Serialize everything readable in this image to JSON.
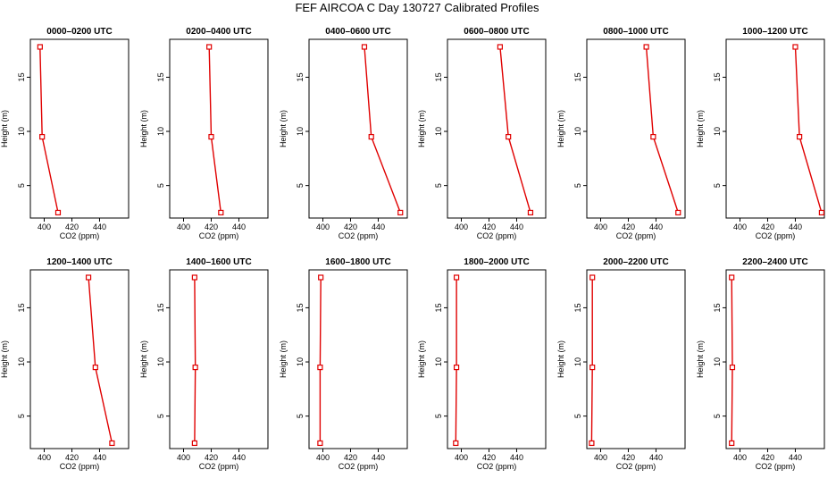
{
  "figure": {
    "title": "FEF AIRCOA C  Day 130727  Calibrated Profiles"
  },
  "chart_data": [
    {
      "type": "line",
      "title": "0000–0200 UTC",
      "xlabel": "CO2 (ppm)",
      "ylabel": "Height (m)",
      "x_ticks": [
        400,
        420,
        440
      ],
      "y_ticks": [
        5,
        10,
        15
      ],
      "xlim": [
        390,
        461
      ],
      "ylim": [
        2,
        18.5
      ],
      "grid": false,
      "series": [
        {
          "x": [
            410,
            398.5,
            397
          ],
          "y": [
            2.5,
            9.5,
            17.8
          ]
        }
      ]
    },
    {
      "type": "line",
      "title": "0200–0400 UTC",
      "xlabel": "CO2 (ppm)",
      "ylabel": "Height (m)",
      "x_ticks": [
        400,
        420,
        440
      ],
      "y_ticks": [
        5,
        10,
        15
      ],
      "xlim": [
        390,
        461
      ],
      "ylim": [
        2,
        18.5
      ],
      "grid": false,
      "series": [
        {
          "x": [
            427,
            420,
            418.5
          ],
          "y": [
            2.5,
            9.5,
            17.8
          ]
        }
      ]
    },
    {
      "type": "line",
      "title": "0400–0600 UTC",
      "xlabel": "CO2 (ppm)",
      "ylabel": "Height (m)",
      "x_ticks": [
        400,
        420,
        440
      ],
      "y_ticks": [
        5,
        10,
        15
      ],
      "xlim": [
        390,
        461
      ],
      "ylim": [
        2,
        18.5
      ],
      "grid": false,
      "series": [
        {
          "x": [
            456,
            435,
            430
          ],
          "y": [
            2.5,
            9.5,
            17.8
          ]
        }
      ]
    },
    {
      "type": "line",
      "title": "0600–0800 UTC",
      "xlabel": "CO2 (ppm)",
      "ylabel": "Height (m)",
      "x_ticks": [
        400,
        420,
        440
      ],
      "y_ticks": [
        5,
        10,
        15
      ],
      "xlim": [
        390,
        461
      ],
      "ylim": [
        2,
        18.5
      ],
      "grid": false,
      "series": [
        {
          "x": [
            450,
            434,
            428
          ],
          "y": [
            2.5,
            9.5,
            17.8
          ]
        }
      ]
    },
    {
      "type": "line",
      "title": "0800–1000 UTC",
      "xlabel": "CO2 (ppm)",
      "ylabel": "Height (m)",
      "x_ticks": [
        400,
        420,
        440
      ],
      "y_ticks": [
        5,
        10,
        15
      ],
      "xlim": [
        390,
        461
      ],
      "ylim": [
        2,
        18.5
      ],
      "grid": false,
      "series": [
        {
          "x": [
            456,
            438,
            433
          ],
          "y": [
            2.5,
            9.5,
            17.8
          ]
        }
      ]
    },
    {
      "type": "line",
      "title": "1000–1200 UTC",
      "xlabel": "CO2 (ppm)",
      "ylabel": "Height (m)",
      "x_ticks": [
        400,
        420,
        440
      ],
      "y_ticks": [
        5,
        10,
        15
      ],
      "xlim": [
        390,
        461
      ],
      "ylim": [
        2,
        18.5
      ],
      "grid": false,
      "series": [
        {
          "x": [
            459,
            443,
            440
          ],
          "y": [
            2.5,
            9.5,
            17.8
          ]
        }
      ]
    },
    {
      "type": "line",
      "title": "1200–1400 UTC",
      "xlabel": "CO2 (ppm)",
      "ylabel": "Height (m)",
      "x_ticks": [
        400,
        420,
        440
      ],
      "y_ticks": [
        5,
        10,
        15
      ],
      "xlim": [
        390,
        461
      ],
      "ylim": [
        2,
        18.5
      ],
      "grid": false,
      "series": [
        {
          "x": [
            449,
            437,
            432
          ],
          "y": [
            2.5,
            9.5,
            17.8
          ]
        }
      ]
    },
    {
      "type": "line",
      "title": "1400–1600 UTC",
      "xlabel": "CO2 (ppm)",
      "ylabel": "Height (m)",
      "x_ticks": [
        400,
        420,
        440
      ],
      "y_ticks": [
        5,
        10,
        15
      ],
      "xlim": [
        390,
        461
      ],
      "ylim": [
        2,
        18.5
      ],
      "grid": false,
      "series": [
        {
          "x": [
            408,
            408.5,
            408
          ],
          "y": [
            2.5,
            9.5,
            17.8
          ]
        }
      ]
    },
    {
      "type": "line",
      "title": "1600–1800 UTC",
      "xlabel": "CO2 (ppm)",
      "ylabel": "Height (m)",
      "x_ticks": [
        400,
        420,
        440
      ],
      "y_ticks": [
        5,
        10,
        15
      ],
      "xlim": [
        390,
        461
      ],
      "ylim": [
        2,
        18.5
      ],
      "grid": false,
      "series": [
        {
          "x": [
            398,
            398,
            398.5
          ],
          "y": [
            2.5,
            9.5,
            17.8
          ]
        }
      ]
    },
    {
      "type": "line",
      "title": "1800–2000 UTC",
      "xlabel": "CO2 (ppm)",
      "ylabel": "Height (m)",
      "x_ticks": [
        400,
        420,
        440
      ],
      "y_ticks": [
        5,
        10,
        15
      ],
      "xlim": [
        390,
        461
      ],
      "ylim": [
        2,
        18.5
      ],
      "grid": false,
      "series": [
        {
          "x": [
            396,
            396.5,
            396.5
          ],
          "y": [
            2.5,
            9.5,
            17.8
          ]
        }
      ]
    },
    {
      "type": "line",
      "title": "2000–2200 UTC",
      "xlabel": "CO2 (ppm)",
      "ylabel": "Height (m)",
      "x_ticks": [
        400,
        420,
        440
      ],
      "y_ticks": [
        5,
        10,
        15
      ],
      "xlim": [
        390,
        461
      ],
      "ylim": [
        2,
        18.5
      ],
      "grid": false,
      "series": [
        {
          "x": [
            393.5,
            394,
            394
          ],
          "y": [
            2.5,
            9.5,
            17.8
          ]
        }
      ]
    },
    {
      "type": "line",
      "title": "2200–2400 UTC",
      "xlabel": "CO2 (ppm)",
      "ylabel": "Height (m)",
      "x_ticks": [
        400,
        420,
        440
      ],
      "y_ticks": [
        5,
        10,
        15
      ],
      "xlim": [
        390,
        461
      ],
      "ylim": [
        2,
        18.5
      ],
      "grid": false,
      "series": [
        {
          "x": [
            394,
            394.5,
            394
          ],
          "y": [
            2.5,
            9.5,
            17.8
          ]
        }
      ]
    }
  ],
  "colors": {
    "series": "#e00000",
    "axis": "#000000",
    "background": "#ffffff"
  }
}
